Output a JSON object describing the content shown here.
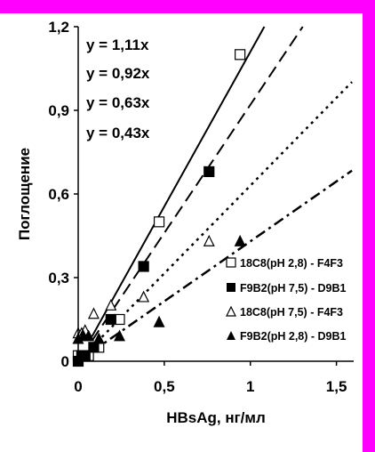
{
  "colors": {
    "frame": "#ff00ff",
    "background": "#ffffff",
    "ink": "#000000"
  },
  "chart_data": {
    "type": "scatter",
    "xlabel": "HBsAg, нг/мл",
    "ylabel": "Поглощение",
    "xlim": [
      0,
      1.6
    ],
    "ylim": [
      0,
      1.2
    ],
    "x_ticks": [
      "0",
      "0,5",
      "1",
      "1,5"
    ],
    "y_ticks": [
      "0",
      "0,3",
      "0,6",
      "0,9",
      "1,2"
    ],
    "x_tick_values": [
      0,
      0.5,
      1,
      1.5
    ],
    "y_tick_values": [
      0,
      0.3,
      0.6,
      0.9,
      1.2
    ],
    "grid": false,
    "legend_position": "lower-right",
    "equations": [
      "y = 1,11x",
      "y = 0,92x",
      "y = 0,63x",
      "y = 0,43x"
    ],
    "series": [
      {
        "name": "18C8(pH 2,8) - F4F3",
        "marker": "square-open",
        "line_style": "solid",
        "slope": 1.11,
        "x": [
          0,
          0.03,
          0.06,
          0.12,
          0.24,
          0.47,
          0.94
        ],
        "y": [
          0.02,
          0.02,
          0.02,
          0.05,
          0.15,
          0.5,
          1.1
        ]
      },
      {
        "name": "F9B2(pH 7,5) - D9B1",
        "marker": "square-filled",
        "line_style": "long-dash",
        "slope": 0.92,
        "x": [
          0,
          0.02,
          0.04,
          0.09,
          0.19,
          0.38,
          0.76
        ],
        "y": [
          0.0,
          0.02,
          0.02,
          0.05,
          0.15,
          0.34,
          0.68
        ]
      },
      {
        "name": "18C8(pH 7,5) - F4F3",
        "marker": "triangle-open",
        "line_style": "dotted",
        "slope": 0.63,
        "x": [
          0,
          0.02,
          0.04,
          0.09,
          0.19,
          0.38,
          0.76
        ],
        "y": [
          0.1,
          0.1,
          0.11,
          0.17,
          0.2,
          0.23,
          0.43
        ]
      },
      {
        "name": "F9B2(pH 2,8) - D9B1",
        "marker": "triangle-filled",
        "line_style": "dash-dot",
        "slope": 0.43,
        "x": [
          0,
          0.03,
          0.06,
          0.12,
          0.24,
          0.47,
          0.94
        ],
        "y": [
          0.08,
          0.09,
          0.09,
          0.08,
          0.09,
          0.14,
          0.43
        ]
      }
    ]
  }
}
